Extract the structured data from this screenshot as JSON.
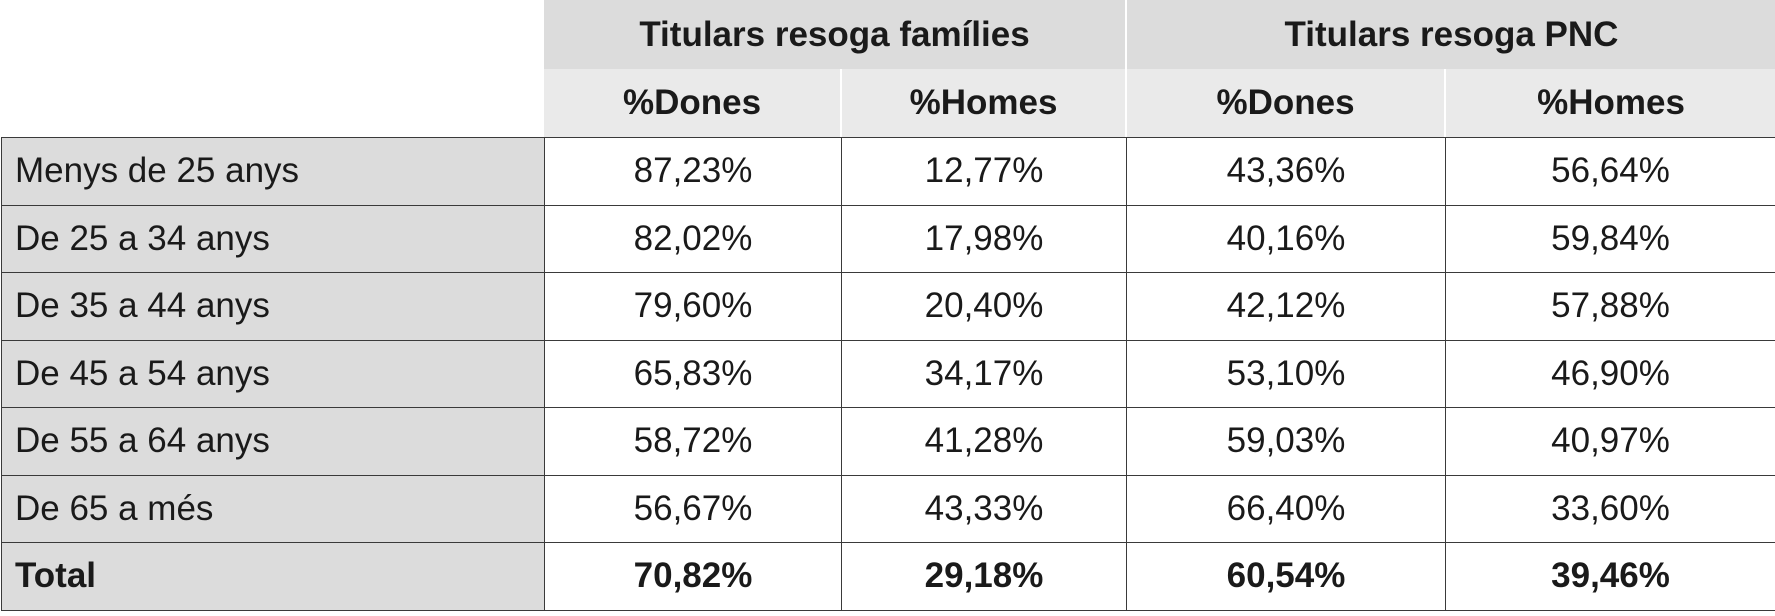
{
  "groups": [
    {
      "label": "Titulars resoga famílies"
    },
    {
      "label": "Titulars resoga PNC"
    }
  ],
  "subheaders": [
    "%Dones",
    "%Homes",
    "%Dones",
    "%Homes"
  ],
  "rows": [
    {
      "label": "Menys de 25 anys",
      "values": [
        "87,23%",
        "12,77%",
        "43,36%",
        "56,64%"
      ]
    },
    {
      "label": "De 25 a 34 anys",
      "values": [
        "82,02%",
        "17,98%",
        "40,16%",
        "59,84%"
      ]
    },
    {
      "label": "De 35 a 44 anys",
      "values": [
        "79,60%",
        "20,40%",
        "42,12%",
        "57,88%"
      ]
    },
    {
      "label": "De 45 a 54 anys",
      "values": [
        "65,83%",
        "34,17%",
        "53,10%",
        "46,90%"
      ]
    },
    {
      "label": "De 55 a 64 anys",
      "values": [
        "58,72%",
        "41,28%",
        "59,03%",
        "40,97%"
      ]
    },
    {
      "label": "De 65 a més",
      "values": [
        "56,67%",
        "43,33%",
        "66,40%",
        "33,60%"
      ]
    }
  ],
  "total": {
    "label": "Total",
    "values": [
      "70,82%",
      "29,18%",
      "60,54%",
      "39,46%"
    ]
  }
}
